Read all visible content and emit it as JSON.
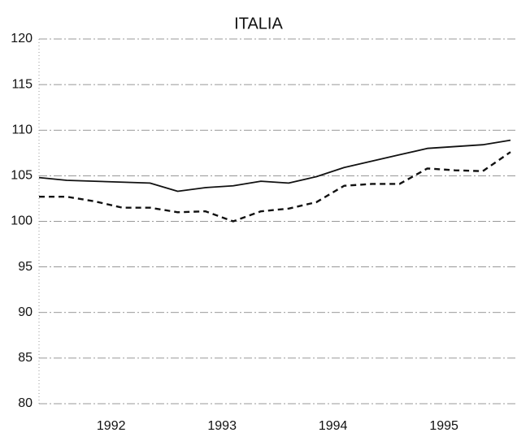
{
  "chart_data": {
    "type": "line",
    "title": "ITALIA",
    "categories": [
      null,
      null,
      null,
      "1992",
      null,
      null,
      null,
      "1993",
      null,
      null,
      null,
      "1994",
      null,
      null,
      null,
      "1995",
      null,
      null
    ],
    "series": [
      {
        "name": null,
        "color": "#111111",
        "dash": "solid",
        "values": [
          104.8,
          104.5,
          104.4,
          104.3,
          104.2,
          103.3,
          103.7,
          103.9,
          104.4,
          104.2,
          104.9,
          105.9,
          106.6,
          107.3,
          108.0,
          108.2,
          108.4,
          108.9
        ]
      },
      {
        "name": null,
        "color": "#111111",
        "dash": "dashed",
        "values": [
          102.7,
          102.7,
          102.2,
          101.5,
          101.5,
          101.0,
          101.1,
          100.0,
          101.1,
          101.4,
          102.1,
          103.9,
          104.1,
          104.1,
          105.8,
          105.6,
          105.5,
          107.6
        ]
      }
    ],
    "ylim": [
      80,
      120
    ],
    "yticks": [
      80,
      85,
      90,
      95,
      100,
      105,
      110,
      115,
      120
    ],
    "grid": true
  }
}
